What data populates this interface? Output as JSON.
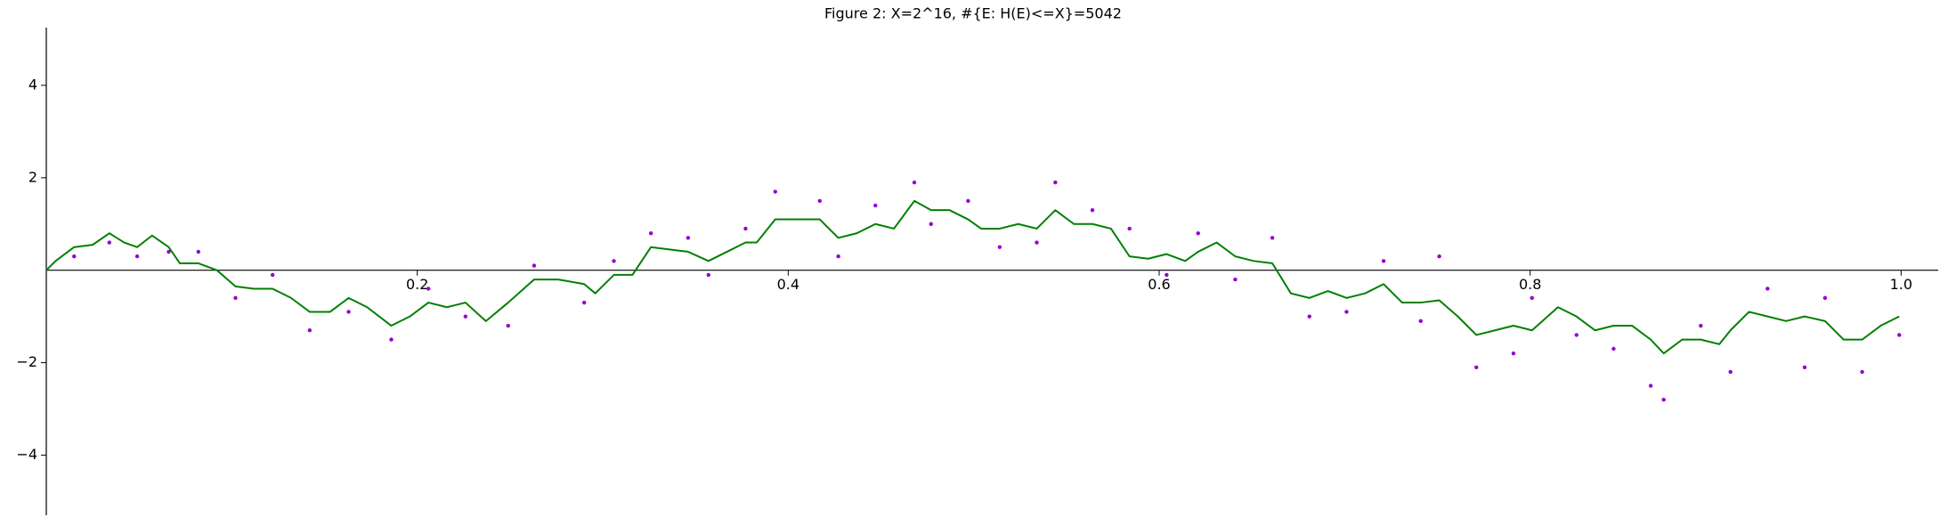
{
  "chart_data": {
    "type": "line",
    "title": "Figure 2: X=2^16, #{E: H(E)<=X}=5042",
    "xlim": [
      0,
      1.02
    ],
    "ylim": [
      -5.3,
      5.25
    ],
    "xticks": [
      0.2,
      0.4,
      0.6,
      0.8,
      {
        "value": 1,
        "label": "1.0"
      }
    ],
    "yticks": [
      {
        "value": -4,
        "label": "−4"
      },
      {
        "value": -2,
        "label": "−2"
      },
      2,
      4
    ],
    "series": [
      {
        "type": "scatter",
        "color": "#9400d3",
        "x": [
          0.015,
          0.034,
          0.049,
          0.066,
          0.082,
          0.102,
          0.122,
          0.142,
          0.163,
          0.186,
          0.206,
          0.226,
          0.249,
          0.263,
          0.29,
          0.306,
          0.326,
          0.346,
          0.357,
          0.377,
          0.393,
          0.417,
          0.427,
          0.447,
          0.468,
          0.477,
          0.497,
          0.514,
          0.534,
          0.544,
          0.564,
          0.584,
          0.604,
          0.621,
          0.641,
          0.661,
          0.681,
          0.701,
          0.721,
          0.741,
          0.751,
          0.771,
          0.791,
          0.801,
          0.825,
          0.845,
          0.865,
          0.872,
          0.892,
          0.908,
          0.928,
          0.948,
          0.959,
          0.979,
          0.999
        ],
        "values": [
          0.3,
          0.6,
          0.3,
          0.4,
          0.4,
          -0.6,
          -0.1,
          -1.3,
          -0.9,
          -1.5,
          -0.4,
          -1.0,
          -1.2,
          0.1,
          -0.7,
          0.2,
          0.8,
          0.7,
          -0.1,
          0.9,
          1.7,
          1.5,
          0.3,
          1.4,
          1.9,
          1.0,
          1.5,
          0.5,
          0.6,
          1.9,
          1.3,
          0.9,
          -0.1,
          0.8,
          -0.2,
          0.7,
          -1.0,
          -0.9,
          0.2,
          -1.1,
          0.3,
          -2.1,
          -1.8,
          -0.6,
          -1.4,
          -1.7,
          -2.5,
          -2.8,
          -1.2,
          -2.2,
          -0.4,
          -2.1,
          -0.6,
          -2.2,
          -1.4
        ]
      },
      {
        "type": "line",
        "color": "#008000",
        "x": [
          0,
          0.005,
          0.015,
          0.025,
          0.034,
          0.042,
          0.049,
          0.057,
          0.066,
          0.072,
          0.082,
          0.092,
          0.102,
          0.112,
          0.122,
          0.132,
          0.142,
          0.153,
          0.163,
          0.173,
          0.186,
          0.196,
          0.206,
          0.216,
          0.226,
          0.237,
          0.249,
          0.263,
          0.276,
          0.29,
          0.296,
          0.306,
          0.316,
          0.326,
          0.336,
          0.346,
          0.357,
          0.367,
          0.377,
          0.383,
          0.393,
          0.403,
          0.417,
          0.427,
          0.437,
          0.447,
          0.457,
          0.468,
          0.477,
          0.487,
          0.497,
          0.504,
          0.514,
          0.524,
          0.534,
          0.544,
          0.554,
          0.564,
          0.574,
          0.584,
          0.594,
          0.604,
          0.614,
          0.621,
          0.631,
          0.641,
          0.651,
          0.661,
          0.671,
          0.681,
          0.691,
          0.701,
          0.711,
          0.721,
          0.731,
          0.741,
          0.751,
          0.761,
          0.771,
          0.781,
          0.791,
          0.801,
          0.815,
          0.825,
          0.835,
          0.845,
          0.855,
          0.865,
          0.872,
          0.882,
          0.892,
          0.902,
          0.908,
          0.918,
          0.928,
          0.938,
          0.948,
          0.959,
          0.969,
          0.979,
          0.989,
          0.999
        ],
        "values": [
          0,
          0.2,
          0.5,
          0.55,
          0.8,
          0.6,
          0.5,
          0.75,
          0.5,
          0.15,
          0.15,
          0,
          -0.35,
          -0.4,
          -0.4,
          -0.6,
          -0.9,
          -0.9,
          -0.6,
          -0.8,
          -1.2,
          -1.0,
          -0.7,
          -0.8,
          -0.7,
          -1.1,
          -0.7,
          -0.2,
          -0.2,
          -0.3,
          -0.5,
          -0.1,
          -0.1,
          0.5,
          0.45,
          0.4,
          0.2,
          0.4,
          0.6,
          0.6,
          1.1,
          1.1,
          1.1,
          0.7,
          0.8,
          1.0,
          0.9,
          1.5,
          1.3,
          1.3,
          1.1,
          0.9,
          0.9,
          1.0,
          0.9,
          1.3,
          1.0,
          1.0,
          0.9,
          0.3,
          0.25,
          0.35,
          0.2,
          0.4,
          0.6,
          0.3,
          0.2,
          0.15,
          -0.5,
          -0.6,
          -0.45,
          -0.6,
          -0.5,
          -0.3,
          -0.7,
          -0.7,
          -0.65,
          -1.0,
          -1.4,
          -1.3,
          -1.2,
          -1.3,
          -0.8,
          -1.0,
          -1.3,
          -1.2,
          -1.2,
          -1.5,
          -1.8,
          -1.5,
          -1.5,
          -1.6,
          -1.3,
          -0.9,
          -1.0,
          -1.1,
          -1.0,
          -1.1,
          -1.5,
          -1.5,
          -1.2,
          -1.0
        ]
      }
    ]
  }
}
